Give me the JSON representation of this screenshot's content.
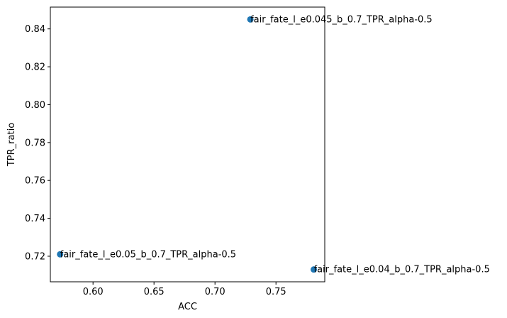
{
  "chart_data": {
    "type": "scatter",
    "xlabel": "ACC",
    "ylabel": "TPR_ratio",
    "xlim": [
      0.565,
      0.79
    ],
    "ylim": [
      0.7065,
      0.8515
    ],
    "xticks": [
      0.6,
      0.65,
      0.7,
      0.75
    ],
    "xtick_labels": [
      "0.60",
      "0.65",
      "0.70",
      "0.75"
    ],
    "yticks": [
      0.72,
      0.74,
      0.76,
      0.78,
      0.8,
      0.82,
      0.84
    ],
    "ytick_labels": [
      "0.72",
      "0.74",
      "0.76",
      "0.78",
      "0.80",
      "0.82",
      "0.84"
    ],
    "grid": false,
    "marker_color": "#1f77b4",
    "points": [
      {
        "x": 0.573,
        "y": 0.721,
        "label": "fair_fate_l_e0.05_b_0.7_TPR_alpha-0.5"
      },
      {
        "x": 0.729,
        "y": 0.845,
        "label": "fair_fate_l_e0.045_b_0.7_TPR_alpha-0.5"
      },
      {
        "x": 0.781,
        "y": 0.713,
        "label": "fair_fate_l_e0.04_b_0.7_TPR_alpha-0.5"
      }
    ]
  }
}
